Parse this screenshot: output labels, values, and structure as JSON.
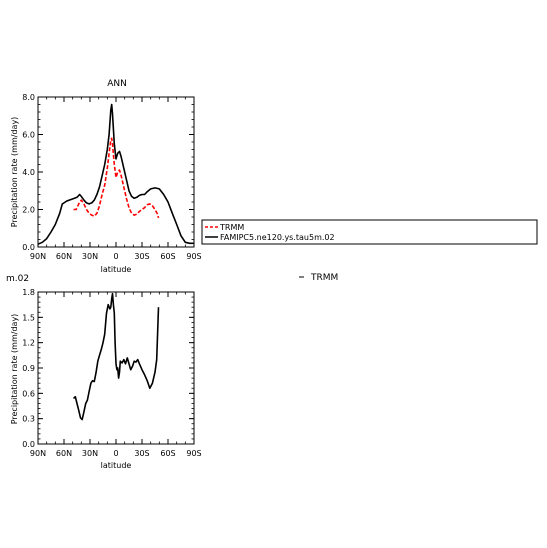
{
  "chart_data": [
    {
      "type": "line",
      "title": "ANN",
      "xlabel": "latitude",
      "ylabel": "Precipitation rate (mm/day)",
      "xlim": [
        90,
        -90
      ],
      "ylim": [
        0,
        8
      ],
      "xticks": [
        90,
        60,
        30,
        0,
        -30,
        -60,
        -90
      ],
      "xtick_labels": [
        "90N",
        "60N",
        "30N",
        "0",
        "30S",
        "60S",
        "90S"
      ],
      "yticks": [
        0,
        2,
        4,
        6,
        8
      ],
      "ytick_labels": [
        "0.0",
        "2.0",
        "4.0",
        "6.0",
        "8.0"
      ],
      "legend_position": "right",
      "series": [
        {
          "name": "TRMM",
          "color": "#ff0000",
          "dash": "dashed",
          "x": [
            49,
            46,
            44,
            42,
            40,
            37,
            34,
            31,
            28,
            25,
            22,
            19,
            16,
            13,
            10,
            8,
            6,
            5,
            4,
            2,
            0,
            -2,
            -4,
            -6,
            -9,
            -12,
            -15,
            -18,
            -21,
            -24,
            -27,
            -30,
            -33,
            -36,
            -39,
            -42,
            -45,
            -48,
            -49
          ],
          "y": [
            2.0,
            2.0,
            2.2,
            2.4,
            2.5,
            2.3,
            2.0,
            1.8,
            1.7,
            1.65,
            1.8,
            2.2,
            2.8,
            3.3,
            4.2,
            5.0,
            5.7,
            5.8,
            5.5,
            4.4,
            3.7,
            4.0,
            4.1,
            3.8,
            3.2,
            2.6,
            2.1,
            1.8,
            1.7,
            1.75,
            1.9,
            2.0,
            2.1,
            2.25,
            2.3,
            2.2,
            2.0,
            1.75,
            1.55
          ]
        },
        {
          "name": "FAMIPC5.ne120.ys.tau5m.02",
          "color": "#000000",
          "dash": "solid",
          "x": [
            90,
            85,
            80,
            75,
            70,
            65,
            62,
            60,
            57,
            54,
            51,
            48,
            45,
            42,
            40,
            37,
            34,
            31,
            28,
            25,
            22,
            19,
            16,
            13,
            10,
            8,
            6,
            5,
            4,
            2,
            0,
            -2,
            -4,
            -6,
            -9,
            -12,
            -15,
            -18,
            -21,
            -24,
            -27,
            -30,
            -33,
            -36,
            -40,
            -45,
            -50,
            -55,
            -60,
            -65,
            -70,
            -75,
            -80,
            -85,
            -90
          ],
          "y": [
            0.15,
            0.25,
            0.45,
            0.8,
            1.2,
            1.8,
            2.3,
            2.35,
            2.45,
            2.5,
            2.55,
            2.6,
            2.65,
            2.8,
            2.7,
            2.5,
            2.35,
            2.3,
            2.35,
            2.5,
            2.8,
            3.2,
            3.8,
            4.4,
            5.2,
            6.0,
            7.3,
            7.6,
            7.1,
            5.5,
            4.7,
            5.0,
            5.1,
            4.8,
            4.2,
            3.6,
            3.0,
            2.7,
            2.6,
            2.65,
            2.75,
            2.8,
            2.8,
            2.95,
            3.1,
            3.15,
            3.1,
            2.8,
            2.4,
            1.8,
            1.2,
            0.6,
            0.25,
            0.2,
            0.2
          ]
        }
      ]
    },
    {
      "type": "line",
      "title": "m.02",
      "legend_text": "TRMM",
      "xlabel": "latitude",
      "ylabel": "Precipitation rate (mm/day)",
      "xlim": [
        90,
        -90
      ],
      "ylim": [
        0,
        1.8
      ],
      "xticks": [
        90,
        60,
        30,
        0,
        -30,
        -60,
        -90
      ],
      "xtick_labels": [
        "90N",
        "60N",
        "30N",
        "0",
        "30S",
        "60S",
        "90S"
      ],
      "yticks": [
        0,
        0.3,
        0.6,
        0.9,
        1.2,
        1.5,
        1.8
      ],
      "ytick_labels": [
        "0.0",
        "0.3",
        "0.6",
        "0.9",
        "1.2",
        "1.5",
        "1.8"
      ],
      "series": [
        {
          "color": "#000000",
          "dash": "solid",
          "x": [
            49,
            47,
            45,
            43,
            41,
            39,
            37,
            35,
            33,
            31,
            29,
            27,
            25,
            23,
            21,
            19,
            17,
            15,
            13,
            11,
            9,
            7,
            6,
            5,
            4,
            3,
            2,
            1,
            0,
            -1,
            -2,
            -3,
            -4,
            -5,
            -7,
            -9,
            -11,
            -13,
            -15,
            -17,
            -19,
            -21,
            -23,
            -25,
            -27,
            -30,
            -33,
            -36,
            -39,
            -42,
            -45,
            -47,
            -49
          ],
          "y": [
            0.54,
            0.56,
            0.48,
            0.4,
            0.31,
            0.29,
            0.38,
            0.48,
            0.52,
            0.62,
            0.72,
            0.75,
            0.74,
            0.85,
            0.98,
            1.05,
            1.12,
            1.2,
            1.3,
            1.55,
            1.65,
            1.6,
            1.62,
            1.72,
            1.78,
            1.65,
            1.55,
            1.2,
            0.95,
            0.88,
            0.9,
            0.78,
            0.85,
            0.98,
            0.96,
            1.0,
            0.95,
            1.02,
            0.95,
            0.88,
            0.92,
            0.98,
            0.97,
            1.0,
            0.95,
            0.88,
            0.82,
            0.75,
            0.66,
            0.72,
            0.85,
            1.0,
            1.62
          ]
        }
      ]
    }
  ]
}
